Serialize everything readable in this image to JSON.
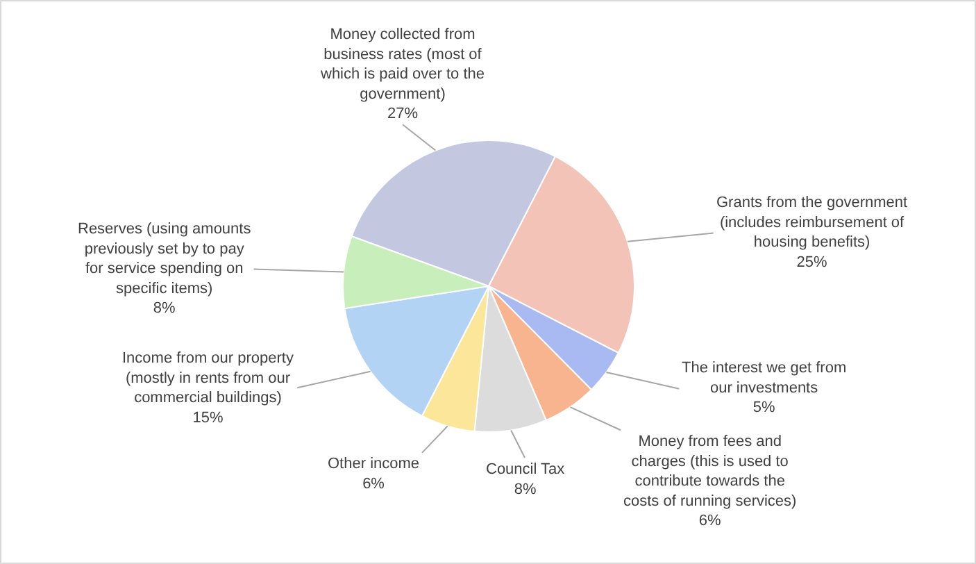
{
  "chart_data": {
    "type": "pie",
    "categories": [
      "Money collected from business rates (most of which is paid over to the government)",
      "Grants from the government (includes reimbursement of housing benefits)",
      "The interest we get from our investments",
      "Money from fees and charges (this is used to contribute towards the costs of running services)",
      "Council Tax",
      "Other income",
      "Income from our property (mostly in rents from our commercial buildings)",
      "Reserves (using amounts previously set by to pay for service spending on specific items)"
    ],
    "values": [
      27,
      25,
      5,
      6,
      8,
      6,
      15,
      8
    ],
    "value_labels": [
      "27%",
      "25%",
      "5%",
      "6%",
      "8%",
      "6%",
      "15%",
      "8%"
    ],
    "colors": [
      "#c3c7e0",
      "#f2c3b6",
      "#a9b9f2",
      "#f8b48f",
      "#dcdcdc",
      "#fbe69a",
      "#b3d3f5",
      "#c8eebb"
    ]
  }
}
